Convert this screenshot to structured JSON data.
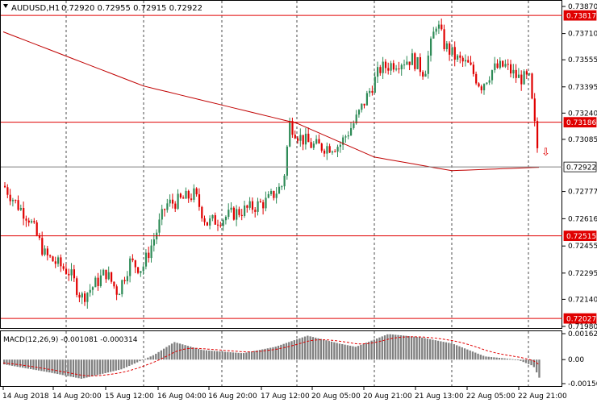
{
  "header": {
    "symbol_tf": "AUDUSD,H1",
    "ohlc": "0.72920 0.72955 0.72915 0.72922"
  },
  "macd_header": {
    "label": "MACD(12,26,9) -0.001081 -0.000314"
  },
  "colors": {
    "bull": "#2e8b57",
    "bear": "#e00000",
    "ma": "#c00000",
    "level": "#e00000",
    "current": "#808080",
    "hist": "#808080",
    "signal": "#e00000",
    "grid": "#000000"
  },
  "price_axis": {
    "ticks": [
      "0.73870",
      "0.73710",
      "0.73555",
      "0.73395",
      "0.73240",
      "0.73085",
      "0.72777",
      "0.72616",
      "0.72455",
      "0.72295",
      "0.72140",
      "0.71980"
    ]
  },
  "levels": [
    {
      "label": "0.73817",
      "kind": "resistance"
    },
    {
      "label": "0.73186",
      "kind": "resistance"
    },
    {
      "label": "0.72922",
      "kind": "current"
    },
    {
      "label": "0.72515",
      "kind": "support"
    },
    {
      "label": "0.72027",
      "kind": "support"
    }
  ],
  "macd_axis": {
    "ticks": [
      "0.001624",
      "0.00",
      "-0.001503"
    ]
  },
  "time_axis": {
    "labels": [
      "14 Aug 2018",
      "14 Aug 20:00",
      "15 Aug 12:00",
      "16 Aug 04:00",
      "16 Aug 20:00",
      "17 Aug 12:00",
      "20 Aug 05:00",
      "20 Aug 21:00",
      "21 Aug 13:00",
      "22 Aug 05:00",
      "22 Aug 21:00"
    ]
  },
  "arrow": {
    "symbol": "⇩"
  },
  "chart_data": {
    "type": "candlestick",
    "symbol": "AUDUSD",
    "timeframe": "H1",
    "ylim": [
      0.7198,
      0.7387
    ],
    "anchor_points": [
      {
        "t": "14 Aug 2018",
        "price": 0.7281
      },
      {
        "t": "14 Aug 20:00",
        "price": 0.7218
      },
      {
        "t": "15 Aug 12:00",
        "price": 0.7234
      },
      {
        "t": "16 Aug 04:00",
        "price": 0.7275
      },
      {
        "t": "16 Aug 20:00",
        "price": 0.7262
      },
      {
        "t": "17 Aug 12:00",
        "price": 0.7318
      },
      {
        "t": "20 Aug 05:00",
        "price": 0.7307
      },
      {
        "t": "20 Aug 21:00",
        "price": 0.735
      },
      {
        "t": "21 Aug 13:00",
        "price": 0.738
      },
      {
        "t": "22 Aug 05:00",
        "price": 0.735
      },
      {
        "t": "22 Aug 21:00",
        "price": 0.7292
      }
    ],
    "moving_average": [
      {
        "t": "14 Aug 2018",
        "price": 0.7372
      },
      {
        "t": "15 Aug 12:00",
        "price": 0.734
      },
      {
        "t": "17 Aug 12:00",
        "price": 0.7318
      },
      {
        "t": "20 Aug 21:00",
        "price": 0.7298
      },
      {
        "t": "22 Aug 05:00",
        "price": 0.729
      },
      {
        "t": "22 Aug 21:00",
        "price": 0.7292
      }
    ],
    "macd": {
      "params": "12,26,9",
      "main": -0.001081,
      "signal": -0.000314,
      "ylim": [
        -0.001503,
        0.001624
      ]
    }
  }
}
